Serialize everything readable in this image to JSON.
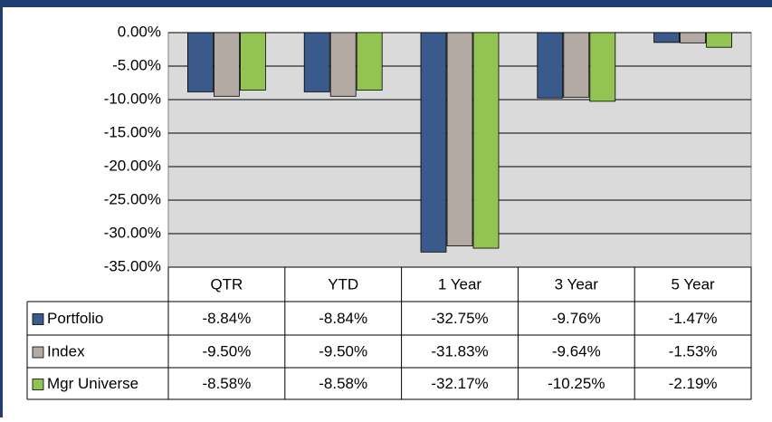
{
  "chart_data": {
    "type": "bar",
    "categories": [
      "QTR",
      "YTD",
      "1 Year",
      "3 Year",
      "5 Year"
    ],
    "series": [
      {
        "name": "Portfolio",
        "color": "#3a5a8c",
        "values": [
          -8.84,
          -8.84,
          -32.75,
          -9.76,
          -1.47
        ],
        "value_labels": [
          "-8.84%",
          "-8.84%",
          "-32.75%",
          "-9.76%",
          "-1.47%"
        ]
      },
      {
        "name": "Index",
        "color": "#b3aaa3",
        "values": [
          -9.5,
          -9.5,
          -31.83,
          -9.64,
          -1.53
        ],
        "value_labels": [
          "-9.50%",
          "-9.50%",
          "-31.83%",
          "-9.64%",
          "-1.53%"
        ]
      },
      {
        "name": "Mgr Universe",
        "color": "#92c353",
        "values": [
          -8.58,
          -8.58,
          -32.17,
          -10.25,
          -2.19
        ],
        "value_labels": [
          "-8.58%",
          "-8.58%",
          "-32.17%",
          "-10.25%",
          "-2.19%"
        ]
      }
    ],
    "ylim": [
      -35,
      0
    ],
    "yticks": [
      {
        "value": 0,
        "label": "0.00%"
      },
      {
        "value": -5,
        "label": "-5.00%"
      },
      {
        "value": -10,
        "label": "-10.00%"
      },
      {
        "value": -15,
        "label": "-15.00%"
      },
      {
        "value": -20,
        "label": "-20.00%"
      },
      {
        "value": -25,
        "label": "-25.00%"
      },
      {
        "value": -30,
        "label": "-30.00%"
      },
      {
        "value": -35,
        "label": "-35.00%"
      }
    ],
    "grid": true
  }
}
